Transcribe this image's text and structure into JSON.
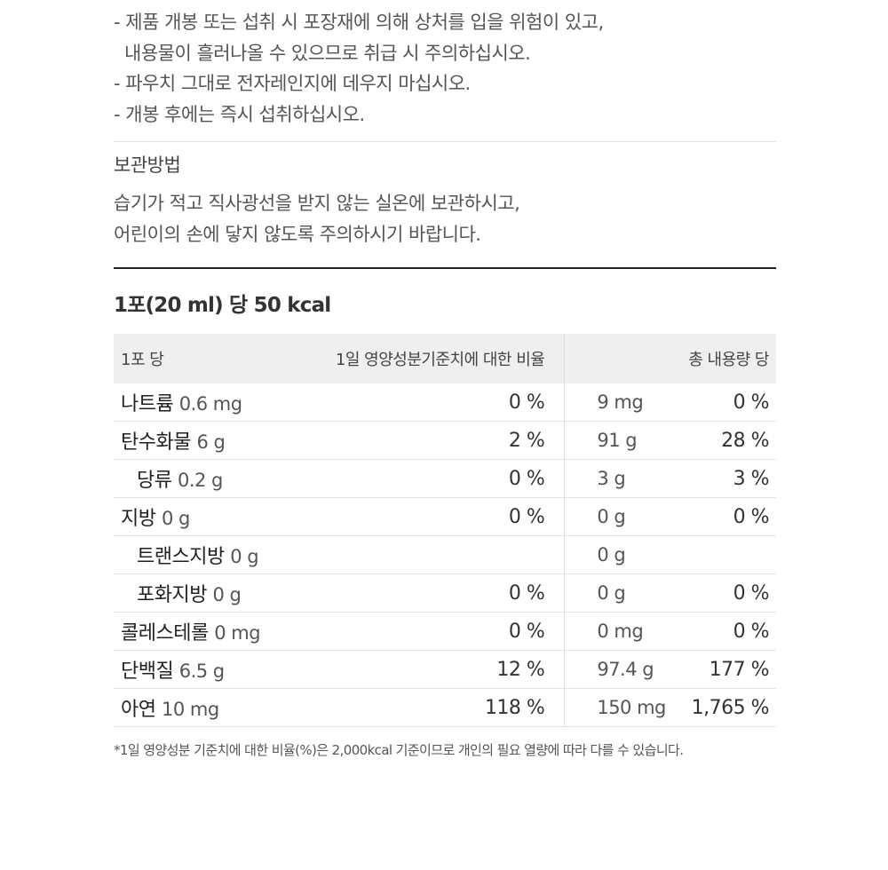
{
  "caution": {
    "lines": [
      "- 제품 개봉 또는 섭취 시 포장재에 의해 상처를 입을 위험이 있고,",
      "내용물이 흘러나올 수 있으므로 취급 시 주의하십시오.",
      "- 파우치 그대로 전자레인지에 데우지 마십시오.",
      "- 개봉 후에는 즉시 섭취하십시오."
    ]
  },
  "storage": {
    "title": "보관방법",
    "lines": [
      "습기가 적고 직사광선을 받지 않는 실온에 보관하시고,",
      "어린이의 손에 닿지 않도록 주의하시기 바랍니다."
    ]
  },
  "nutrition": {
    "title": "1포(20 ml) 당 50 kcal",
    "headers": {
      "per_pack": "1포 당",
      "daily_ratio": "1일 영양성분기준치에 대한 비율",
      "total": "총 내용량 당"
    },
    "rows": [
      {
        "name": "나트륨",
        "amount": "0.6 mg",
        "pct": "0 %",
        "total_amount": "9 mg",
        "total_pct": "0 %",
        "sub": false
      },
      {
        "name": "탄수화물",
        "amount": "6 g",
        "pct": "2 %",
        "total_amount": "91 g",
        "total_pct": "28 %",
        "sub": false
      },
      {
        "name": "당류",
        "amount": "0.2 g",
        "pct": "0 %",
        "total_amount": "3 g",
        "total_pct": "3 %",
        "sub": true
      },
      {
        "name": "지방",
        "amount": "0 g",
        "pct": "0 %",
        "total_amount": "0 g",
        "total_pct": "0 %",
        "sub": false
      },
      {
        "name": "트랜스지방",
        "amount": "0 g",
        "pct": "",
        "total_amount": "0 g",
        "total_pct": "",
        "sub": true
      },
      {
        "name": "포화지방",
        "amount": "0 g",
        "pct": "0 %",
        "total_amount": "0 g",
        "total_pct": "0 %",
        "sub": true
      },
      {
        "name": "콜레스테롤",
        "amount": "0 mg",
        "pct": "0 %",
        "total_amount": "0 mg",
        "total_pct": "0 %",
        "sub": false
      },
      {
        "name": "단백질",
        "amount": "6.5 g",
        "pct": "12 %",
        "total_amount": "97.4 g",
        "total_pct": "177 %",
        "sub": false
      },
      {
        "name": "아연",
        "amount": "10 mg",
        "pct": "118 %",
        "total_amount": "150 mg",
        "total_pct": "1,765 %",
        "sub": false
      }
    ],
    "footnote": "*1일 영양성분 기준치에 대한 비율(%)은 2,000kcal 기준이므로 개인의 필요 열량에 따라 다를 수 있습니다."
  }
}
